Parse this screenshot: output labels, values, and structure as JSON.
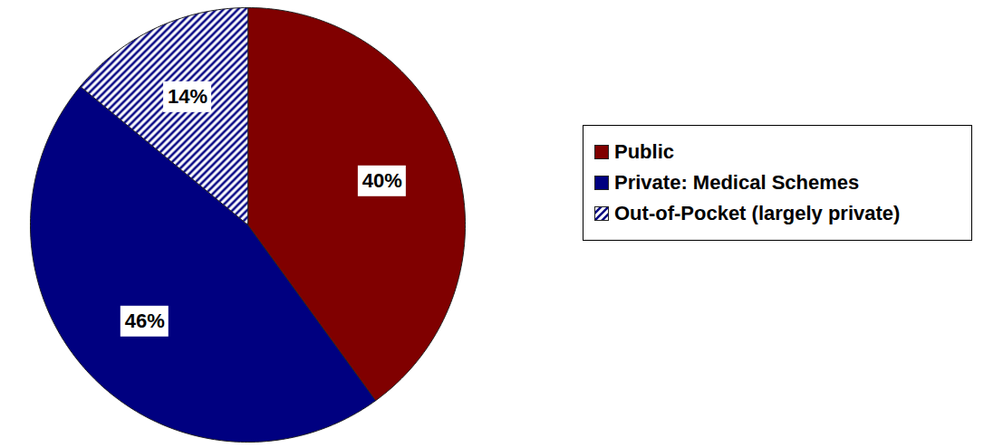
{
  "chart_data": {
    "type": "pie",
    "categories": [
      "Public",
      "Private: Medical Schemes",
      "Out-of-Pocket (largely private)"
    ],
    "values": [
      40,
      46,
      14
    ],
    "value_labels": [
      "40%",
      "46%",
      "14%"
    ],
    "colors": [
      "#800000",
      "#000080",
      "#000080"
    ],
    "data_labels": true,
    "legend": "right"
  }
}
